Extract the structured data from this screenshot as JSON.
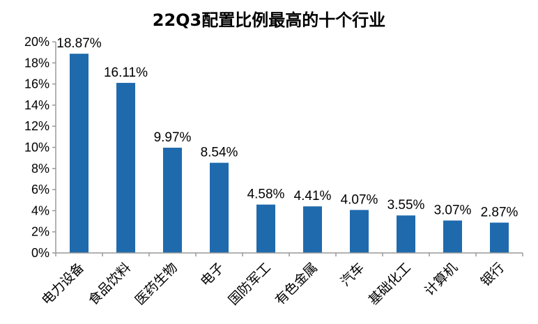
{
  "chart_data": {
    "type": "bar",
    "title": "22Q3配置比例最高的十个行业",
    "xlabel": "",
    "ylabel": "",
    "ylim": [
      0,
      20
    ],
    "yticks": [
      "0%",
      "2%",
      "4%",
      "6%",
      "8%",
      "10%",
      "12%",
      "14%",
      "16%",
      "18%",
      "20%"
    ],
    "categories": [
      "电力设备",
      "食品饮料",
      "医药生物",
      "电子",
      "国防军工",
      "有色金属",
      "汽车",
      "基础化工",
      "计算机",
      "银行"
    ],
    "values": [
      18.87,
      16.11,
      9.97,
      8.54,
      4.58,
      4.41,
      4.07,
      3.55,
      3.07,
      2.87
    ],
    "data_labels": [
      "18.87%",
      "16.11%",
      "9.97%",
      "8.54%",
      "4.58%",
      "4.41%",
      "4.07%",
      "3.55%",
      "3.07%",
      "2.87%"
    ],
    "grid": false,
    "legend": "none",
    "bar_color": "#1F6AAD"
  }
}
